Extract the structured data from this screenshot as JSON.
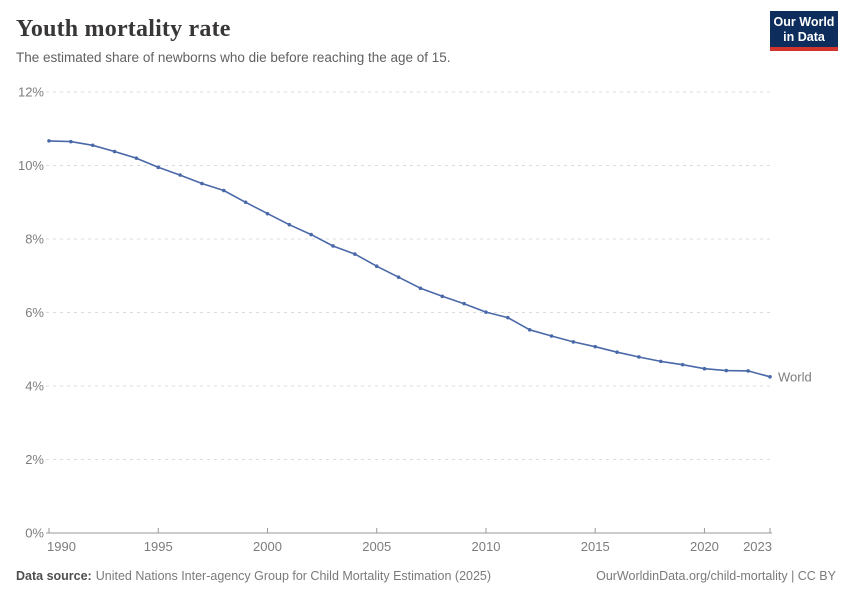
{
  "header": {
    "title": "Youth mortality rate",
    "subtitle": "The estimated share of newborns who die before reaching the age of 15.",
    "logo": {
      "line1": "Our World",
      "line2": "in Data"
    }
  },
  "chart_data": {
    "type": "line",
    "title": "Youth mortality rate",
    "x": [
      1990,
      1991,
      1992,
      1993,
      1994,
      1995,
      1996,
      1997,
      1998,
      1999,
      2000,
      2001,
      2002,
      2003,
      2004,
      2005,
      2006,
      2007,
      2008,
      2009,
      2010,
      2011,
      2012,
      2013,
      2014,
      2015,
      2016,
      2017,
      2018,
      2019,
      2020,
      2021,
      2022,
      2023
    ],
    "series": [
      {
        "name": "World",
        "color": "#4a69a8",
        "values": [
          10.67,
          10.65,
          10.55,
          10.38,
          10.2,
          9.95,
          9.74,
          9.51,
          9.32,
          9.0,
          8.69,
          8.39,
          8.12,
          7.81,
          7.59,
          7.26,
          6.96,
          6.66,
          6.44,
          6.24,
          6.01,
          5.86,
          5.53,
          5.36,
          5.2,
          5.07,
          4.92,
          4.79,
          4.67,
          4.58,
          4.47,
          4.42,
          4.41,
          4.25
        ]
      }
    ],
    "x_ticks": [
      {
        "value": 1990,
        "label": "1990"
      },
      {
        "value": 1995,
        "label": "1995"
      },
      {
        "value": 2000,
        "label": "2000"
      },
      {
        "value": 2005,
        "label": "2005"
      },
      {
        "value": 2010,
        "label": "2010"
      },
      {
        "value": 2015,
        "label": "2015"
      },
      {
        "value": 2020,
        "label": "2020"
      },
      {
        "value": 2023,
        "label": "2023"
      }
    ],
    "y_ticks": [
      {
        "value": 0,
        "label": "0%"
      },
      {
        "value": 2,
        "label": "2%"
      },
      {
        "value": 4,
        "label": "4%"
      },
      {
        "value": 6,
        "label": "6%"
      },
      {
        "value": 8,
        "label": "8%"
      },
      {
        "value": 10,
        "label": "10%"
      },
      {
        "value": 12,
        "label": "12%"
      }
    ],
    "xlim": [
      1990,
      2023
    ],
    "ylim": [
      0,
      12
    ],
    "xlabel": "",
    "ylabel": "",
    "grid": "horizontal-dashed",
    "legend_position": "end-of-line-label",
    "end_label": "World"
  },
  "colors": {
    "line": "#4a69a8",
    "grid": "#dcdcdc",
    "axis": "#999999",
    "tick_label": "#7d7d7d",
    "logo_bg": "#0d2e5c",
    "logo_accent": "#d0342c"
  },
  "footer": {
    "source_label": "Data source:",
    "source_text": "United Nations Inter-agency Group for Child Mortality Estimation (2025)",
    "credit_text": "OurWorldinData.org/child-mortality | CC BY"
  }
}
